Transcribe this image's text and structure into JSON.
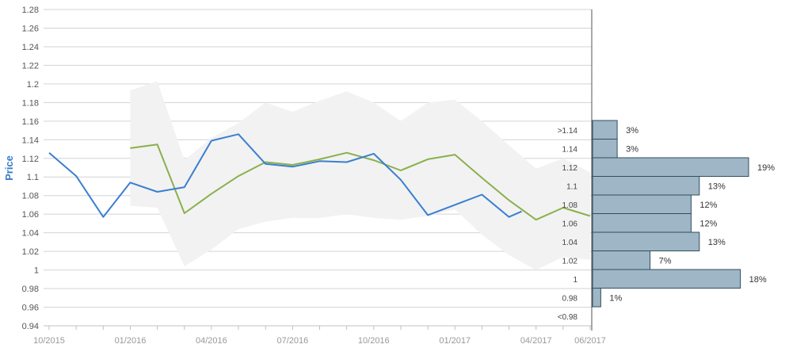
{
  "chart_data": {
    "type": "line",
    "ylabel": "Price",
    "ylim": [
      0.94,
      1.28
    ],
    "y_ticks": [
      "0.94",
      "0.96",
      "0.98",
      "1",
      "1.02",
      "1.04",
      "1.06",
      "1.08",
      "1.1",
      "1.12",
      "1.14",
      "1.16",
      "1.18",
      "1.2",
      "1.22",
      "1.24",
      "1.26",
      "1.28"
    ],
    "x_tick_labels": [
      "10/2015",
      "01/2016",
      "04/2016",
      "07/2016",
      "10/2016",
      "01/2017",
      "04/2017",
      "06/2017"
    ],
    "grid": true,
    "colors": {
      "actual": "#3a7fd0",
      "forecast": "#8ab04c",
      "band": "#f2f2f2",
      "histogram_fill": "#9fb6c6",
      "histogram_stroke": "#2f4f5f"
    },
    "series": [
      {
        "key": "actual",
        "points": [
          [
            "2015-10",
            1.126
          ],
          [
            "2015-11",
            1.101
          ],
          [
            "2015-12",
            1.057
          ],
          [
            "2016-01",
            1.094
          ],
          [
            "2016-02",
            1.084
          ],
          [
            "2016-03",
            1.089
          ],
          [
            "2016-04",
            1.139
          ],
          [
            "2016-05",
            1.146
          ],
          [
            "2016-06",
            1.114
          ],
          [
            "2016-07",
            1.111
          ],
          [
            "2016-08",
            1.117
          ],
          [
            "2016-09",
            1.116
          ],
          [
            "2016-10",
            1.125
          ],
          [
            "2016-11",
            1.097
          ],
          [
            "2016-12",
            1.059
          ],
          [
            "2017-01",
            1.07
          ],
          [
            "2017-02",
            1.081
          ],
          [
            "2017-03",
            1.057
          ],
          [
            "2017-03-15",
            1.063
          ]
        ]
      },
      {
        "key": "forecast",
        "points": [
          [
            "2016-01",
            1.131
          ],
          [
            "2016-02",
            1.135
          ],
          [
            "2016-03",
            1.061
          ],
          [
            "2016-04",
            1.082
          ],
          [
            "2016-05",
            1.101
          ],
          [
            "2016-06",
            1.116
          ],
          [
            "2016-07",
            1.113
          ],
          [
            "2016-08",
            1.119
          ],
          [
            "2016-09",
            1.126
          ],
          [
            "2016-10",
            1.118
          ],
          [
            "2016-11",
            1.107
          ],
          [
            "2016-12",
            1.119
          ],
          [
            "2017-01",
            1.124
          ],
          [
            "2017-02",
            1.099
          ],
          [
            "2017-03",
            1.075
          ],
          [
            "2017-04",
            1.054
          ],
          [
            "2017-05",
            1.067
          ],
          [
            "2017-06",
            1.058
          ]
        ]
      }
    ],
    "band": {
      "upper": [
        [
          "2016-01",
          1.193
        ],
        [
          "2016-02",
          1.203
        ],
        [
          "2016-03",
          1.118
        ],
        [
          "2016-04",
          1.142
        ],
        [
          "2016-05",
          1.158
        ],
        [
          "2016-06",
          1.18
        ],
        [
          "2016-07",
          1.17
        ],
        [
          "2016-08",
          1.182
        ],
        [
          "2016-09",
          1.192
        ],
        [
          "2016-10",
          1.18
        ],
        [
          "2016-11",
          1.16
        ],
        [
          "2016-12",
          1.18
        ],
        [
          "2017-01",
          1.183
        ],
        [
          "2017-02",
          1.16
        ],
        [
          "2017-03",
          1.134
        ],
        [
          "2017-04",
          1.109
        ],
        [
          "2017-05",
          1.12
        ],
        [
          "2017-06",
          1.105
        ]
      ],
      "lower": [
        [
          "2016-01",
          1.069
        ],
        [
          "2016-02",
          1.067
        ],
        [
          "2016-03",
          1.004
        ],
        [
          "2016-04",
          1.022
        ],
        [
          "2016-05",
          1.044
        ],
        [
          "2016-06",
          1.052
        ],
        [
          "2016-07",
          1.056
        ],
        [
          "2016-08",
          1.056
        ],
        [
          "2016-09",
          1.06
        ],
        [
          "2016-10",
          1.056
        ],
        [
          "2016-11",
          1.054
        ],
        [
          "2016-12",
          1.058
        ],
        [
          "2017-01",
          1.065
        ],
        [
          "2017-02",
          1.038
        ],
        [
          "2017-03",
          1.016
        ],
        [
          "2017-04",
          1.0
        ],
        [
          "2017-05",
          1.014
        ],
        [
          "2017-06",
          1.011
        ]
      ]
    },
    "histogram": [
      {
        "label": ">1.14",
        "percent": 3,
        "text": "3%"
      },
      {
        "label": "1.14",
        "percent": 3,
        "text": "3%"
      },
      {
        "label": "1.12",
        "percent": 19,
        "text": "19%"
      },
      {
        "label": "1.1",
        "percent": 13,
        "text": "13%"
      },
      {
        "label": "1.08",
        "percent": 12,
        "text": "12%"
      },
      {
        "label": "1.06",
        "percent": 12,
        "text": "12%"
      },
      {
        "label": "1.04",
        "percent": 13,
        "text": "13%"
      },
      {
        "label": "1.02",
        "percent": 7,
        "text": "7%"
      },
      {
        "label": "1",
        "percent": 18,
        "text": "18%"
      },
      {
        "label": "0.98",
        "percent": 1,
        "text": "1%"
      },
      {
        "label": "<0.98",
        "percent": 0,
        "text": ""
      }
    ]
  }
}
